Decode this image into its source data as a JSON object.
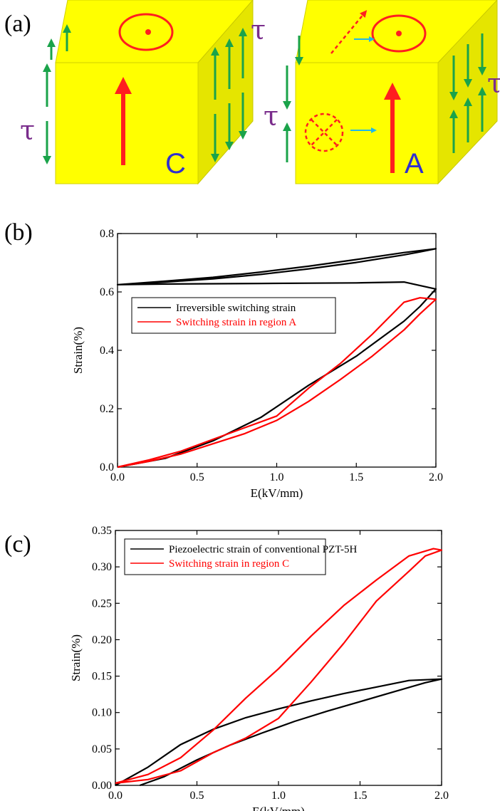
{
  "panel_labels": {
    "a": "(a)",
    "b": "(b)",
    "c": "(c)"
  },
  "diagram": {
    "tau_symbol": "τ",
    "cube_left_label": "C",
    "cube_right_label": "A",
    "colors": {
      "cube_face": "#ffff00",
      "cube_side": "#e5e500",
      "polarization": "#ff1f1f",
      "shear": "#1aa34a",
      "tau": "#7a2d8c",
      "label": "#2f2fcf",
      "flow": "#20b8e8"
    }
  },
  "chart_data": [
    {
      "type": "line",
      "xlabel": "E(kV/mm)",
      "ylabel": "Strain(%)",
      "xlim": [
        0,
        2.0
      ],
      "ylim": [
        0,
        0.8
      ],
      "xticks": [
        "0.0",
        "0.5",
        "1.0",
        "1.5",
        "2.0"
      ],
      "yticks": [
        "0.0",
        "0.2",
        "0.4",
        "0.6",
        "0.8"
      ],
      "legend_position": "upper-left",
      "series": [
        {
          "name": "Irreversible switching strain",
          "color": "#000000",
          "x": [
            0.0,
            0.3,
            0.6,
            0.9,
            1.2,
            1.5,
            1.8,
            1.9,
            2.0,
            1.8,
            1.5,
            1.2,
            0.9,
            0.6,
            0.3,
            0.0,
            0.3,
            0.6,
            0.9,
            1.2,
            1.5,
            1.8,
            2.0,
            1.9,
            1.8,
            1.5,
            1.2,
            0.9,
            0.6,
            0.3,
            0.0
          ],
          "y": [
            0.625,
            0.634,
            0.645,
            0.66,
            0.679,
            0.701,
            0.727,
            0.737,
            0.748,
            0.735,
            0.711,
            0.688,
            0.668,
            0.65,
            0.637,
            0.625,
            0.627,
            0.628,
            0.629,
            0.63,
            0.631,
            0.634,
            0.61,
            0.55,
            0.5,
            0.38,
            0.28,
            0.17,
            0.09,
            0.03,
            0.0
          ]
        },
        {
          "name": "Switching strain in region A",
          "color": "#ff0000",
          "x": [
            0.0,
            0.2,
            0.4,
            0.6,
            0.8,
            1.0,
            1.2,
            1.4,
            1.6,
            1.8,
            1.9,
            2.0,
            1.9,
            1.8,
            1.6,
            1.4,
            1.2,
            1.0,
            0.8,
            0.6,
            0.4,
            0.2,
            0.0
          ],
          "y": [
            0.0,
            0.02,
            0.045,
            0.08,
            0.115,
            0.16,
            0.225,
            0.3,
            0.38,
            0.47,
            0.525,
            0.575,
            0.58,
            0.565,
            0.455,
            0.355,
            0.27,
            0.175,
            0.135,
            0.095,
            0.055,
            0.025,
            0.0
          ]
        }
      ]
    },
    {
      "type": "line",
      "xlabel": "E(kV/mm)",
      "ylabel": "Strain(%)",
      "xlim": [
        0,
        2.0
      ],
      "ylim": [
        0,
        0.35
      ],
      "xticks": [
        "0.0",
        "0.5",
        "1.0",
        "1.5",
        "2.0"
      ],
      "yticks": [
        "0.00",
        "0.05",
        "0.10",
        "0.15",
        "0.20",
        "0.25",
        "0.30",
        "0.35"
      ],
      "legend_position": "upper-left",
      "series": [
        {
          "name": "Piezoelectric strain of conventional PZT-5H",
          "color": "#000000",
          "x": [
            0.15,
            0.3,
            0.5,
            0.7,
            0.9,
            1.1,
            1.3,
            1.5,
            1.7,
            1.9,
            2.0,
            1.8,
            1.6,
            1.4,
            1.2,
            1.0,
            0.8,
            0.6,
            0.4,
            0.2,
            0.0
          ],
          "y": [
            0.0,
            0.012,
            0.035,
            0.055,
            0.072,
            0.088,
            0.102,
            0.115,
            0.128,
            0.141,
            0.146,
            0.144,
            0.135,
            0.126,
            0.116,
            0.105,
            0.093,
            0.077,
            0.056,
            0.025,
            0.0
          ]
        },
        {
          "name": "Switching strain in region C",
          "color": "#ff0000",
          "x": [
            0.0,
            0.2,
            0.4,
            0.6,
            0.8,
            1.0,
            1.2,
            1.4,
            1.6,
            1.8,
            1.9,
            2.0,
            1.95,
            1.8,
            1.6,
            1.4,
            1.2,
            1.0,
            0.8,
            0.6,
            0.4,
            0.2,
            0.0
          ],
          "y": [
            0.003,
            0.008,
            0.02,
            0.045,
            0.065,
            0.092,
            0.142,
            0.195,
            0.253,
            0.294,
            0.315,
            0.323,
            0.325,
            0.315,
            0.282,
            0.247,
            0.205,
            0.16,
            0.12,
            0.076,
            0.038,
            0.015,
            0.003
          ]
        }
      ]
    }
  ]
}
